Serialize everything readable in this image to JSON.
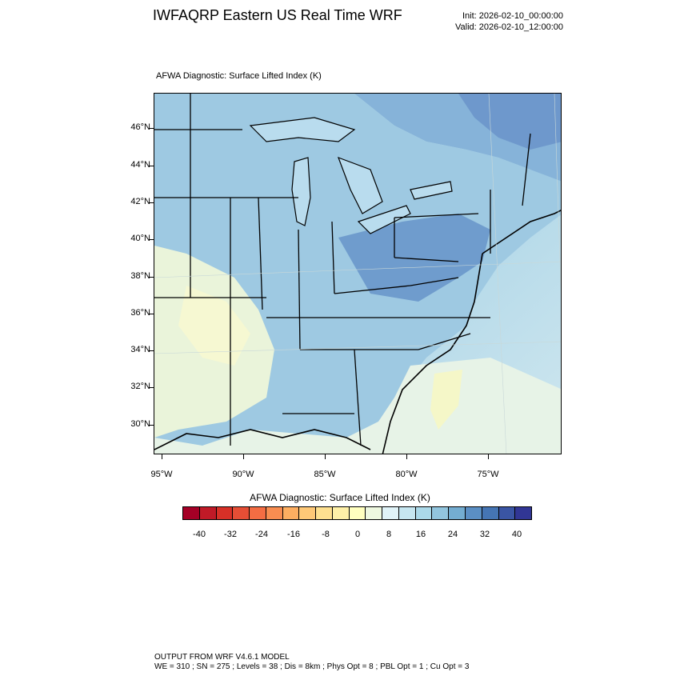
{
  "header": {
    "title": "IWFAQRP Eastern US Real Time WRF",
    "init": "Init: 2026-02-10_00:00:00",
    "valid": "Valid: 2026-02-10_12:00:00"
  },
  "panel": {
    "title": "AFWA Diagnostic: Surface Lifted Index   (K)"
  },
  "axes": {
    "lat_labels": [
      "46°N",
      "44°N",
      "42°N",
      "40°N",
      "38°N",
      "36°N",
      "34°N",
      "32°N",
      "30°N"
    ],
    "lon_labels": [
      "95°W",
      "90°W",
      "85°W",
      "80°W",
      "75°W"
    ]
  },
  "colorbar": {
    "title": "AFWA Diagnostic: Surface Lifted Index  (K)",
    "labels": [
      "-40",
      "-32",
      "-24",
      "-16",
      "-8",
      "0",
      "8",
      "16",
      "24",
      "32",
      "40"
    ],
    "colors": [
      "#a50026",
      "#c01a27",
      "#d73027",
      "#e54e35",
      "#f46d43",
      "#f88d51",
      "#fdae61",
      "#fec877",
      "#fee090",
      "#fef0a8",
      "#ffffbf",
      "#eef8e0",
      "#e0f3f8",
      "#c6e6f0",
      "#abd9e9",
      "#92c5de",
      "#74add1",
      "#5b8fc4",
      "#4575b4",
      "#3a55a4",
      "#313695"
    ]
  },
  "footer": {
    "line1": "OUTPUT FROM WRF V4.6.1 MODEL",
    "line2": "WE = 310 ; SN = 275 ; Levels = 38 ; Dis = 8km ; Phys Opt = 8 ; PBL Opt = 1 ; Cu Opt = 3"
  }
}
